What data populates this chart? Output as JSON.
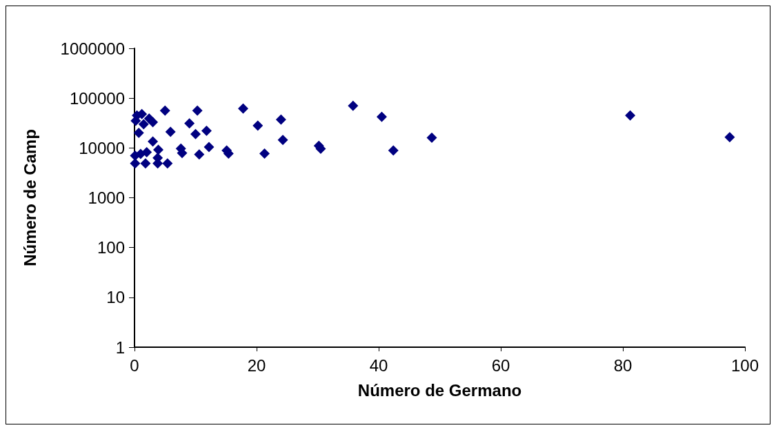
{
  "chart_data": {
    "type": "scatter",
    "xlabel": "Número de Germano",
    "ylabel": "Número de Camp",
    "log": "y",
    "marker": "diamond",
    "xlim": [
      0,
      100
    ],
    "xticks": [
      0,
      20,
      40,
      60,
      80,
      100
    ],
    "ylim": [
      1,
      1000000
    ],
    "yticks": [
      1,
      10,
      100,
      1000,
      10000,
      100000,
      1000000
    ],
    "series": [
      {
        "color": "#000080",
        "x": [
          0.2,
          0.4,
          1.2,
          1.5,
          2.4,
          3,
          5,
          10.3,
          0.7,
          5.9,
          9,
          10,
          11.8,
          3,
          0.1,
          1,
          2,
          3.9,
          0.1,
          1.8,
          3.8,
          3.8,
          5.4,
          7.6,
          7.8,
          10.6,
          12.2,
          15.1,
          15.4,
          17.8,
          20.2,
          21.3,
          24,
          24.3,
          30.2,
          30.5,
          35.8,
          40.5,
          42.4,
          48.7,
          81.2,
          97.5
        ],
        "values": [
          35000,
          45000,
          48000,
          30000,
          39000,
          33000,
          56000,
          56000,
          20000,
          21000,
          31000,
          19000,
          22000,
          13500,
          7000,
          7600,
          8200,
          9200,
          4900,
          4900,
          4900,
          6300,
          4900,
          9700,
          7900,
          7400,
          10400,
          8900,
          7700,
          62000,
          28000,
          7700,
          37000,
          14500,
          11000,
          9600,
          70000,
          42000,
          8900,
          16000,
          45000,
          16500
        ]
      }
    ]
  }
}
